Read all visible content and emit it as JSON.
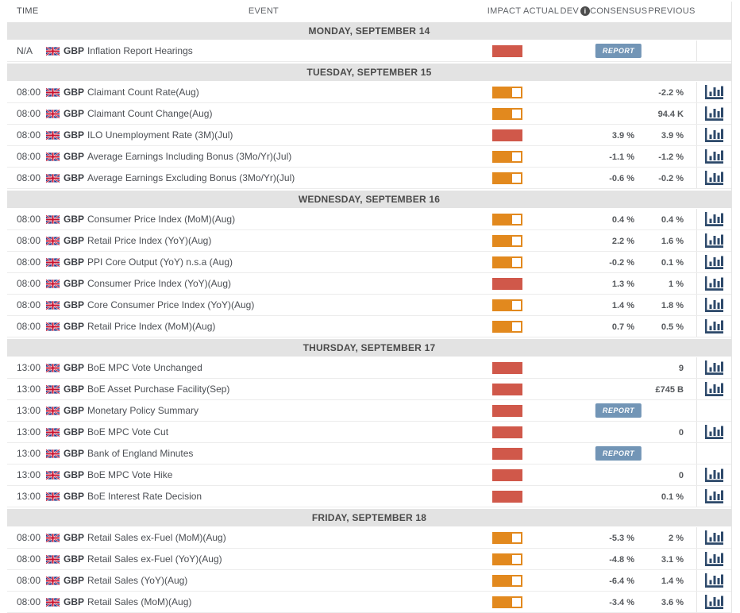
{
  "header": {
    "columns": [
      "TIME",
      "EVENT",
      "IMPACT",
      "ACTUAL",
      "DEV",
      "CONSENSUS",
      "PREVIOUS"
    ],
    "dev_info_icon": "i"
  },
  "colors": {
    "impact_medium_orange": "#e2891e",
    "impact_high_red": "#d0584a",
    "report_button_blue": "#7295b6",
    "chart_icon_navy": "#2e4a6b",
    "day_band_gray": "#e3e3e3"
  },
  "report_button_label": "REPORT",
  "icons": {
    "flag": "uk-flag-icon",
    "chart": "bar-chart-icon",
    "info": "info-icon"
  },
  "days": [
    {
      "label": "MONDAY, SEPTEMBER 14",
      "events": [
        {
          "time": "N/A",
          "currency": "GBP",
          "name": "Inflation Report Hearings",
          "impact": "high",
          "actual": "",
          "dev": "",
          "consensus": "",
          "report": true,
          "previous": "",
          "chart": false
        }
      ]
    },
    {
      "label": "TUESDAY, SEPTEMBER 15",
      "events": [
        {
          "time": "08:00",
          "currency": "GBP",
          "name": "Claimant Count Rate(Aug)",
          "impact": "medium",
          "actual": "",
          "dev": "",
          "consensus": "",
          "report": false,
          "previous": "-2.2 %",
          "chart": true
        },
        {
          "time": "08:00",
          "currency": "GBP",
          "name": "Claimant Count Change(Aug)",
          "impact": "medium",
          "actual": "",
          "dev": "",
          "consensus": "",
          "report": false,
          "previous": "94.4 K",
          "chart": true
        },
        {
          "time": "08:00",
          "currency": "GBP",
          "name": "ILO Unemployment Rate (3M)(Jul)",
          "impact": "high",
          "actual": "",
          "dev": "",
          "consensus": "3.9 %",
          "report": false,
          "previous": "3.9 %",
          "chart": true
        },
        {
          "time": "08:00",
          "currency": "GBP",
          "name": "Average Earnings Including Bonus (3Mo/Yr)(Jul)",
          "impact": "medium",
          "actual": "",
          "dev": "",
          "consensus": "-1.1 %",
          "report": false,
          "previous": "-1.2 %",
          "chart": true
        },
        {
          "time": "08:00",
          "currency": "GBP",
          "name": "Average Earnings Excluding Bonus (3Mo/Yr)(Jul)",
          "impact": "medium",
          "actual": "",
          "dev": "",
          "consensus": "-0.6 %",
          "report": false,
          "previous": "-0.2 %",
          "chart": true
        }
      ]
    },
    {
      "label": "WEDNESDAY, SEPTEMBER 16",
      "events": [
        {
          "time": "08:00",
          "currency": "GBP",
          "name": "Consumer Price Index (MoM)(Aug)",
          "impact": "medium",
          "actual": "",
          "dev": "",
          "consensus": "0.4 %",
          "report": false,
          "previous": "0.4 %",
          "chart": true
        },
        {
          "time": "08:00",
          "currency": "GBP",
          "name": "Retail Price Index (YoY)(Aug)",
          "impact": "medium",
          "actual": "",
          "dev": "",
          "consensus": "2.2 %",
          "report": false,
          "previous": "1.6 %",
          "chart": true
        },
        {
          "time": "08:00",
          "currency": "GBP",
          "name": "PPI Core Output (YoY) n.s.a (Aug)",
          "impact": "medium",
          "actual": "",
          "dev": "",
          "consensus": "-0.2 %",
          "report": false,
          "previous": "0.1 %",
          "chart": true
        },
        {
          "time": "08:00",
          "currency": "GBP",
          "name": "Consumer Price Index (YoY)(Aug)",
          "impact": "high",
          "actual": "",
          "dev": "",
          "consensus": "1.3 %",
          "report": false,
          "previous": "1 %",
          "chart": true
        },
        {
          "time": "08:00",
          "currency": "GBP",
          "name": "Core Consumer Price Index (YoY)(Aug)",
          "impact": "medium",
          "actual": "",
          "dev": "",
          "consensus": "1.4 %",
          "report": false,
          "previous": "1.8 %",
          "chart": true
        },
        {
          "time": "08:00",
          "currency": "GBP",
          "name": "Retail Price Index (MoM)(Aug)",
          "impact": "medium",
          "actual": "",
          "dev": "",
          "consensus": "0.7 %",
          "report": false,
          "previous": "0.5 %",
          "chart": true
        }
      ]
    },
    {
      "label": "THURSDAY, SEPTEMBER 17",
      "events": [
        {
          "time": "13:00",
          "currency": "GBP",
          "name": "BoE MPC Vote Unchanged",
          "impact": "high",
          "actual": "",
          "dev": "",
          "consensus": "",
          "report": false,
          "previous": "9",
          "chart": true
        },
        {
          "time": "13:00",
          "currency": "GBP",
          "name": "BoE Asset Purchase Facility(Sep)",
          "impact": "high",
          "actual": "",
          "dev": "",
          "consensus": "",
          "report": false,
          "previous": "£745 B",
          "chart": true
        },
        {
          "time": "13:00",
          "currency": "GBP",
          "name": "Monetary Policy Summary",
          "impact": "high",
          "actual": "",
          "dev": "",
          "consensus": "",
          "report": true,
          "previous": "",
          "chart": false
        },
        {
          "time": "13:00",
          "currency": "GBP",
          "name": "BoE MPC Vote Cut",
          "impact": "high",
          "actual": "",
          "dev": "",
          "consensus": "",
          "report": false,
          "previous": "0",
          "chart": true
        },
        {
          "time": "13:00",
          "currency": "GBP",
          "name": "Bank of England Minutes",
          "impact": "high",
          "actual": "",
          "dev": "",
          "consensus": "",
          "report": true,
          "previous": "",
          "chart": false
        },
        {
          "time": "13:00",
          "currency": "GBP",
          "name": "BoE MPC Vote Hike",
          "impact": "high",
          "actual": "",
          "dev": "",
          "consensus": "",
          "report": false,
          "previous": "0",
          "chart": true
        },
        {
          "time": "13:00",
          "currency": "GBP",
          "name": "BoE Interest Rate Decision",
          "impact": "high",
          "actual": "",
          "dev": "",
          "consensus": "",
          "report": false,
          "previous": "0.1 %",
          "chart": true
        }
      ]
    },
    {
      "label": "FRIDAY, SEPTEMBER 18",
      "events": [
        {
          "time": "08:00",
          "currency": "GBP",
          "name": "Retail Sales ex-Fuel (MoM)(Aug)",
          "impact": "medium",
          "actual": "",
          "dev": "",
          "consensus": "-5.3 %",
          "report": false,
          "previous": "2 %",
          "chart": true
        },
        {
          "time": "08:00",
          "currency": "GBP",
          "name": "Retail Sales ex-Fuel (YoY)(Aug)",
          "impact": "medium",
          "actual": "",
          "dev": "",
          "consensus": "-4.8 %",
          "report": false,
          "previous": "3.1 %",
          "chart": true
        },
        {
          "time": "08:00",
          "currency": "GBP",
          "name": "Retail Sales (YoY)(Aug)",
          "impact": "medium",
          "actual": "",
          "dev": "",
          "consensus": "-6.4 %",
          "report": false,
          "previous": "1.4 %",
          "chart": true
        },
        {
          "time": "08:00",
          "currency": "GBP",
          "name": "Retail Sales (MoM)(Aug)",
          "impact": "medium",
          "actual": "",
          "dev": "",
          "consensus": "-3.4 %",
          "report": false,
          "previous": "3.6 %",
          "chart": true
        }
      ]
    }
  ]
}
